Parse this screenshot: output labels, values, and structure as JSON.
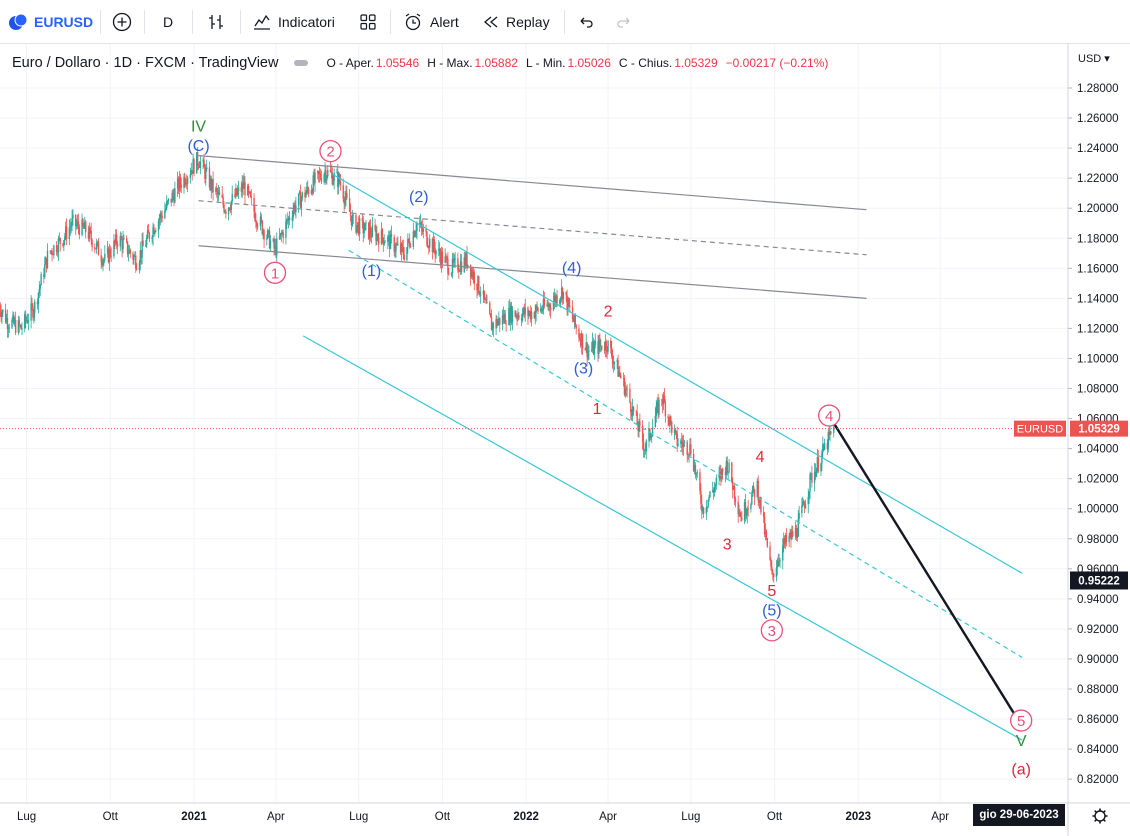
{
  "toolbar": {
    "symbol": "EURUSD",
    "interval": "D",
    "indicators": "Indicatori",
    "alert": "Alert",
    "replay": "Replay"
  },
  "legend": {
    "title": "Euro / Dollaro · 1D · FXCM · TradingView",
    "o_label": "O - Aper.",
    "o_value": "1.05546",
    "h_label": "H - Max.",
    "h_value": "1.05882",
    "l_label": "L - Min.",
    "l_value": "1.05026",
    "c_label": "C - Chius.",
    "c_value": "1.05329",
    "change": "−0.00217 (−0.21%)"
  },
  "price_axis": {
    "currency": "USD",
    "ticks": [
      "1.28000",
      "1.26000",
      "1.24000",
      "1.22000",
      "1.20000",
      "1.18000",
      "1.16000",
      "1.14000",
      "1.12000",
      "1.10000",
      "1.08000",
      "1.06000",
      "1.04000",
      "1.02000",
      "1.00000",
      "0.98000",
      "0.96000",
      "0.94000",
      "0.92000",
      "0.90000",
      "0.88000",
      "0.86000",
      "0.84000",
      "0.82000"
    ],
    "last_symbol": "EURUSD",
    "last_price": "1.05329",
    "cursor_price": "0.95222"
  },
  "time_axis": {
    "labels": [
      "Lug",
      "Ott",
      "2021",
      "Apr",
      "Lug",
      "Ott",
      "2022",
      "Apr",
      "Lug",
      "Ott",
      "2023",
      "Apr"
    ],
    "bold": [
      "2021",
      "2022",
      "2023"
    ],
    "cursor_date": "gio 29-06-2023"
  },
  "colors": {
    "up": "#26a69a",
    "down": "#ef5350",
    "cyan": "#39c6d8",
    "gray": "#868993",
    "blue": "#2f5fd0",
    "green": "#2e8b3a",
    "pink": "#e8507a",
    "red": "#e0273a"
  },
  "chart_data": {
    "type": "candlestick",
    "symbol": "EURUSD",
    "interval": "1D",
    "source": "FXCM",
    "ylim": [
      0.81,
      1.295
    ],
    "x_range": [
      "2020-06-01",
      "2023-07-01"
    ],
    "path": [
      [
        "2020-06-01",
        1.135
      ],
      [
        "2020-06-10",
        1.125
      ],
      [
        "2020-06-25",
        1.12
      ],
      [
        "2020-07-10",
        1.135
      ],
      [
        "2020-07-25",
        1.17
      ],
      [
        "2020-08-10",
        1.18
      ],
      [
        "2020-08-20",
        1.19
      ],
      [
        "2020-09-05",
        1.185
      ],
      [
        "2020-09-25",
        1.165
      ],
      [
        "2020-10-10",
        1.18
      ],
      [
        "2020-10-30",
        1.165
      ],
      [
        "2020-11-15",
        1.185
      ],
      [
        "2020-12-01",
        1.2
      ],
      [
        "2020-12-15",
        1.215
      ],
      [
        "2021-01-06",
        1.233
      ],
      [
        "2021-01-20",
        1.215
      ],
      [
        "2021-02-05",
        1.2
      ],
      [
        "2021-02-25",
        1.215
      ],
      [
        "2021-03-10",
        1.195
      ],
      [
        "2021-03-31",
        1.172
      ],
      [
        "2021-04-20",
        1.2
      ],
      [
        "2021-05-10",
        1.215
      ],
      [
        "2021-05-25",
        1.225
      ],
      [
        "2021-06-10",
        1.218
      ],
      [
        "2021-06-25",
        1.19
      ],
      [
        "2021-07-10",
        1.185
      ],
      [
        "2021-07-30",
        1.18
      ],
      [
        "2021-08-20",
        1.17
      ],
      [
        "2021-09-03",
        1.19
      ],
      [
        "2021-09-20",
        1.175
      ],
      [
        "2021-10-10",
        1.16
      ],
      [
        "2021-10-28",
        1.165
      ],
      [
        "2021-11-12",
        1.145
      ],
      [
        "2021-11-24",
        1.122
      ],
      [
        "2021-12-15",
        1.13
      ],
      [
        "2022-01-05",
        1.13
      ],
      [
        "2022-01-25",
        1.135
      ],
      [
        "2022-02-10",
        1.145
      ],
      [
        "2022-02-25",
        1.12
      ],
      [
        "2022-03-10",
        1.105
      ],
      [
        "2022-03-31",
        1.11
      ],
      [
        "2022-04-20",
        1.08
      ],
      [
        "2022-05-12",
        1.04
      ],
      [
        "2022-05-30",
        1.075
      ],
      [
        "2022-06-15",
        1.045
      ],
      [
        "2022-07-01",
        1.04
      ],
      [
        "2022-07-14",
        1.0
      ],
      [
        "2022-08-10",
        1.03
      ],
      [
        "2022-08-25",
        0.995
      ],
      [
        "2022-09-12",
        1.015
      ],
      [
        "2022-09-28",
        0.955
      ],
      [
        "2022-10-10",
        0.975
      ],
      [
        "2022-10-25",
        0.985
      ],
      [
        "2022-11-10",
        1.02
      ],
      [
        "2022-11-25",
        1.04
      ],
      [
        "2022-12-05",
        1.053
      ]
    ],
    "last": {
      "date": "2022-12-05",
      "open": 1.05546,
      "high": 1.05882,
      "low": 1.05026,
      "close": 1.05329,
      "change": -0.00217,
      "change_pct": -0.21
    },
    "lines": [
      {
        "style": "gray-solid",
        "from": [
          "2021-01-06",
          1.235
        ],
        "to": [
          "2023-01-10",
          1.199
        ]
      },
      {
        "style": "gray-dashed",
        "from": [
          "2021-01-06",
          1.205
        ],
        "to": [
          "2023-01-10",
          1.169
        ]
      },
      {
        "style": "gray-solid",
        "from": [
          "2021-01-06",
          1.175
        ],
        "to": [
          "2023-01-10",
          1.14
        ]
      },
      {
        "style": "cyan-solid",
        "from": [
          "2021-06-01",
          1.223
        ],
        "to": [
          "2023-06-30",
          0.957
        ]
      },
      {
        "style": "cyan-dashed",
        "from": [
          "2021-06-20",
          1.172
        ],
        "to": [
          "2023-06-30",
          0.901
        ]
      },
      {
        "style": "cyan-solid",
        "from": [
          "2021-05-01",
          1.115
        ],
        "to": [
          "2023-06-30",
          0.846
        ]
      },
      {
        "style": "black-projection",
        "from": [
          "2022-12-05",
          1.057
        ],
        "to": [
          "2023-06-29",
          0.856
        ]
      }
    ],
    "annotations": [
      {
        "text": "IV",
        "color": "green",
        "at": [
          "2021-01-06",
          1.255
        ]
      },
      {
        "text": "(C)",
        "color": "blue",
        "at": [
          "2021-01-06",
          1.242
        ]
      },
      {
        "text": "2",
        "color": "pink",
        "circle": true,
        "at": [
          "2021-05-31",
          1.238
        ]
      },
      {
        "text": "1",
        "color": "pink",
        "circle": true,
        "at": [
          "2021-03-31",
          1.157
        ]
      },
      {
        "text": "(2)",
        "color": "blue",
        "at": [
          "2021-09-05",
          1.208
        ]
      },
      {
        "text": "(1)",
        "color": "blue",
        "at": [
          "2021-07-15",
          1.159
        ]
      },
      {
        "text": "(4)",
        "color": "blue",
        "at": [
          "2022-02-20",
          1.161
        ]
      },
      {
        "text": "2",
        "color": "red",
        "at": [
          "2022-04-01",
          1.132
        ]
      },
      {
        "text": "(3)",
        "color": "blue",
        "at": [
          "2022-03-05",
          1.094
        ]
      },
      {
        "text": "1",
        "color": "red",
        "at": [
          "2022-03-20",
          1.067
        ]
      },
      {
        "text": "4",
        "color": "pink",
        "circle": true,
        "at": [
          "2022-11-30",
          1.062
        ]
      },
      {
        "text": "4",
        "color": "red",
        "at": [
          "2022-09-15",
          1.035
        ]
      },
      {
        "text": "3",
        "color": "red",
        "at": [
          "2022-08-10",
          0.977
        ]
      },
      {
        "text": "5",
        "color": "red",
        "at": [
          "2022-09-28",
          0.946
        ]
      },
      {
        "text": "(5)",
        "color": "blue",
        "at": [
          "2022-09-28",
          0.933
        ]
      },
      {
        "text": "3",
        "color": "pink",
        "circle": true,
        "at": [
          "2022-09-28",
          0.919
        ]
      },
      {
        "text": "5",
        "color": "pink",
        "circle": true,
        "at": [
          "2023-06-29",
          0.859
        ]
      },
      {
        "text": "V",
        "color": "green",
        "at": [
          "2023-06-29",
          0.846
        ]
      },
      {
        "text": "(a)",
        "color": "red",
        "at": [
          "2023-06-29",
          0.827
        ]
      }
    ]
  }
}
